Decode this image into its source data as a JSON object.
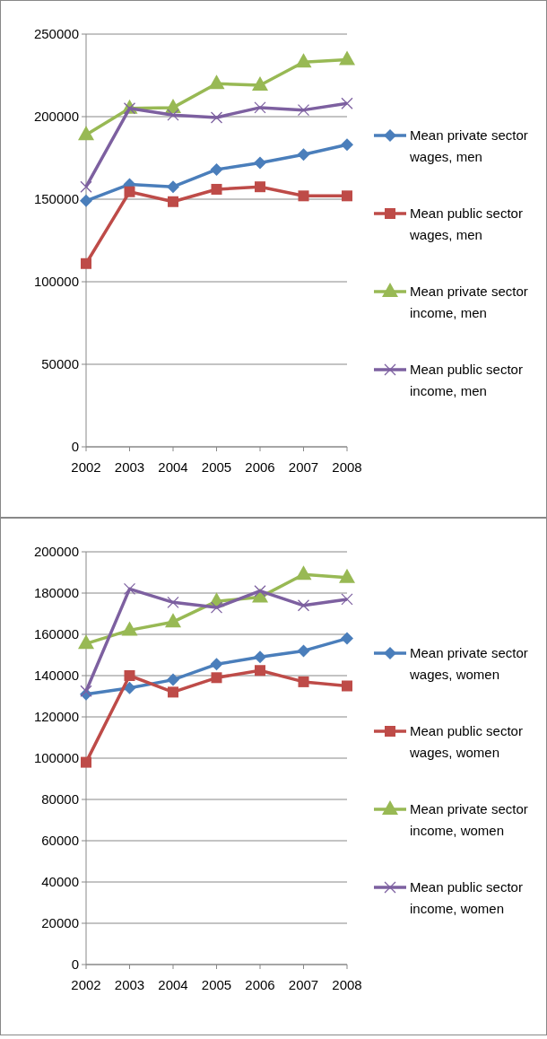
{
  "chart_data": [
    {
      "type": "line",
      "categories": [
        "2002",
        "2003",
        "2004",
        "2005",
        "2006",
        "2007",
        "2008"
      ],
      "ylim": [
        0,
        250000
      ],
      "yticks": [
        0,
        50000,
        100000,
        150000,
        200000,
        250000
      ],
      "grid": "y",
      "legend": "right",
      "series": [
        {
          "name": "Mean private sector wages, men",
          "color": "#4a7ebb",
          "marker": "diamond",
          "values": [
            149000,
            159000,
            157500,
            168000,
            172000,
            177000,
            183000
          ]
        },
        {
          "name": "Mean public sector wages, men",
          "color": "#be4b48",
          "marker": "square",
          "values": [
            111000,
            154500,
            148500,
            156000,
            157500,
            152000,
            152000
          ]
        },
        {
          "name": "Mean private sector income, men",
          "color": "#98b954",
          "marker": "triangle",
          "values": [
            189000,
            205000,
            205500,
            220000,
            219000,
            233000,
            234500
          ]
        },
        {
          "name": "Mean public sector income, men",
          "color": "#7d60a0",
          "marker": "cross",
          "values": [
            157500,
            205000,
            201000,
            199500,
            205500,
            204000,
            208000
          ]
        }
      ]
    },
    {
      "type": "line",
      "categories": [
        "2002",
        "2003",
        "2004",
        "2005",
        "2006",
        "2007",
        "2008"
      ],
      "ylim": [
        0,
        200000
      ],
      "yticks": [
        0,
        20000,
        40000,
        60000,
        80000,
        100000,
        120000,
        140000,
        160000,
        180000,
        200000
      ],
      "grid": "y",
      "legend": "right",
      "series": [
        {
          "name": "Mean private sector wages, women",
          "color": "#4a7ebb",
          "marker": "diamond",
          "values": [
            131000,
            134000,
            138000,
            145500,
            149000,
            152000,
            158000
          ]
        },
        {
          "name": "Mean public sector wages, women",
          "color": "#be4b48",
          "marker": "square",
          "values": [
            98000,
            140000,
            132000,
            139000,
            142500,
            137000,
            135000
          ]
        },
        {
          "name": "Mean private sector income, women",
          "color": "#98b954",
          "marker": "triangle",
          "values": [
            155500,
            162000,
            166000,
            176000,
            178000,
            189000,
            187500
          ]
        },
        {
          "name": "Mean public sector income, women",
          "color": "#7d60a0",
          "marker": "cross",
          "values": [
            132500,
            182000,
            175500,
            173000,
            181000,
            174000,
            177000
          ]
        }
      ]
    }
  ]
}
